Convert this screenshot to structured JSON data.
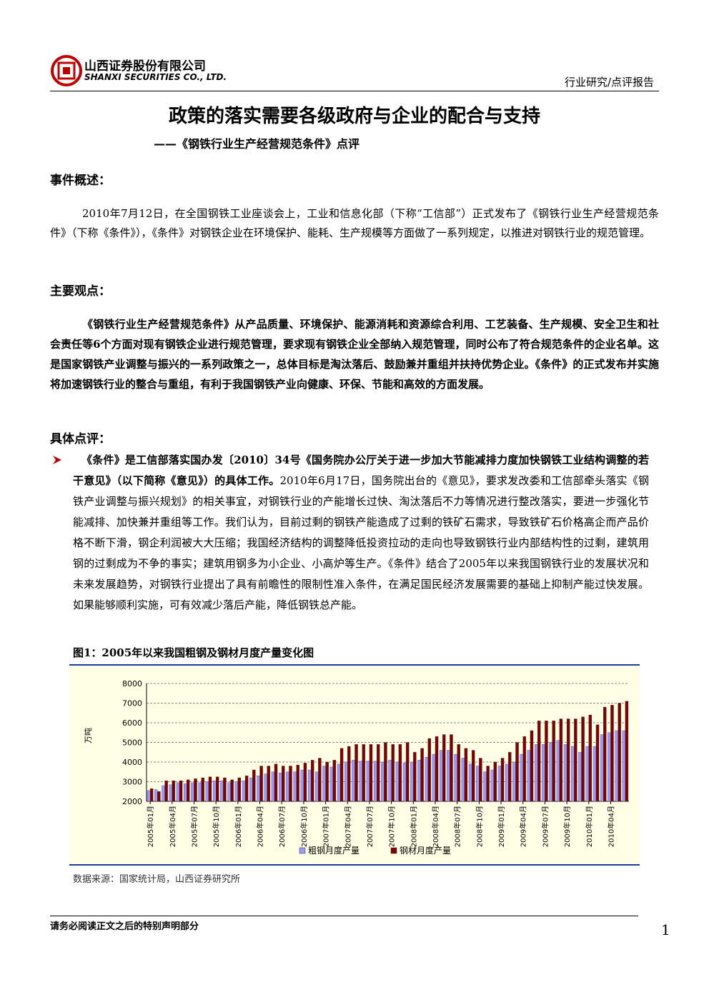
{
  "header": {
    "company_cn": "山西证券股份有限公司",
    "company_en": "SHANXI SECURITIES CO., LTD.",
    "report_type": "行业研究/点评报告"
  },
  "title": "政策的落实需要各级政府与企业的配合与支持",
  "subtitle": "——《钢铁行业生产经营规范条件》点评",
  "event_summary": {
    "heading": "事件概述：",
    "text": "2010年7月12日，在全国钢铁工业座谈会上，工业和信息化部（下称“工信部”）正式发布了《钢铁行业生产经营规范条件》（下称《条件》），《条件》对钢铁企业在环境保护、能耗、生产规模等方面做了一系列规定，以推进对钢铁行业的规范管理。"
  },
  "main_view": {
    "heading": "主要观点：",
    "text": "《钢铁行业生产经营规范条件》从产品质量、环境保护、能源消耗和资源综合利用、工艺装备、生产规模、安全卫生和社会责任等6个方面对现有钢铁企业进行规范管理，要求现有钢铁企业全部纳入规范管理，同时公布了符合规范条件的企业名单。这是国家钢铁产业调整与振兴的一系列政策之一，总体目标是淘汰落后、鼓励兼并重组并扶持优势企业。《条件》的正式发布并实施将加速钢铁行业的整合与重组，有利于我国钢铁产业向健康、环保、节能和高效的方面发展。"
  },
  "commentary": {
    "heading": "具体点评：",
    "bullet_bold": "《条件》是工信部落实国办发〔2010〕34号《国务院办公厅关于进一步加大节能减排力度加快钢铁工业结构调整的若干意见》（以下简称《意见》）的具体工作。",
    "bullet_text": "2010年6月17日，国务院出台的《意见》，要求发改委和工信部牵头落实《钢铁产业调整与振兴规划》的相关事宜，对钢铁行业的产能增长过快、淘汰落后不力等情况进行整改落实，要进一步强化节能减排、加快兼并重组等工作。我们认为，目前过剩的钢铁产能造成了过剩的铁矿石需求，导致铁矿石价格高企而产品价格不断下滑，钢企利润被大大压缩；我国经济结构的调整降低投资拉动的走向也导致钢铁行业内部结构性的过剩，建筑用钢的过剩成为不争的事实；建筑用钢多为小企业、小高炉等生产。《条件》结合了2005年以来我国钢铁行业的发展状况和未来发展趋势，对钢铁行业提出了具有前瞻性的限制性准入条件，在满足国民经济发展需要的基础上抑制产能过快发展。如果能够顺利实施，可有效减少落后产能，降低钢铁总产能。"
  },
  "figure": {
    "caption": "图1：2005年以来我国粗钢及钢材月度产量变化图",
    "source": "数据来源：国家统计局，山西证券研究所"
  },
  "chart_data": {
    "type": "bar",
    "y_label": "万吨",
    "categories": [
      "2005年01月",
      null,
      null,
      "2005年04月",
      null,
      null,
      "2005年07月",
      null,
      null,
      "2005年10月",
      null,
      null,
      "2006年01月",
      null,
      null,
      "2006年04月",
      null,
      null,
      "2006年07月",
      null,
      null,
      "2006年10月",
      null,
      null,
      "2007年01月",
      null,
      null,
      "2007年04月",
      null,
      null,
      "2007年07月",
      null,
      null,
      "2007年10月",
      null,
      null,
      "2008年01月",
      null,
      null,
      "2008年04月",
      null,
      null,
      "2008年07月",
      null,
      null,
      "2008年10月",
      null,
      null,
      "2009年01月",
      null,
      null,
      "2009年04月",
      null,
      null,
      "2009年07月",
      null,
      null,
      "2009年10月",
      null,
      null,
      "2010年01月",
      null,
      null,
      "2010年04月",
      null,
      null
    ],
    "series": [
      {
        "name": "粗钢月度产量",
        "color": "#9999ff",
        "values": [
          2550,
          2600,
          2800,
          2850,
          2950,
          2900,
          2950,
          2950,
          3000,
          3050,
          3050,
          2950,
          3000,
          3050,
          3200,
          3300,
          3400,
          3500,
          3450,
          3500,
          3500,
          3600,
          3600,
          3500,
          3800,
          3750,
          3900,
          4000,
          4100,
          4050,
          4050,
          4050,
          4000,
          4100,
          4000,
          3950,
          4000,
          4100,
          4250,
          4400,
          4600,
          4600,
          4400,
          4200,
          3900,
          3800,
          3500,
          3600,
          3800,
          3900,
          4000,
          4400,
          4600,
          4900,
          4900,
          5000,
          5100,
          4900,
          4800,
          4500,
          4800,
          4800,
          5400,
          5500,
          5600,
          5600
        ]
      },
      {
        "name": "钢材月度产量",
        "color": "#800000",
        "values": [
          2650,
          2500,
          3050,
          3050,
          3050,
          3100,
          3150,
          3200,
          3250,
          3250,
          3200,
          3100,
          3200,
          3300,
          3600,
          3800,
          3800,
          3900,
          3800,
          3800,
          3850,
          3950,
          4100,
          4200,
          4000,
          4100,
          4700,
          4800,
          4900,
          4900,
          4900,
          4900,
          5000,
          4900,
          4900,
          5000,
          4500,
          4700,
          5200,
          5300,
          5400,
          5400,
          4900,
          4700,
          4600,
          4200,
          3800,
          4000,
          4200,
          4500,
          5000,
          5300,
          5600,
          6100,
          6100,
          6100,
          6200,
          6200,
          6200,
          6300,
          6400,
          5900,
          6800,
          6900,
          7000,
          7100
        ]
      }
    ],
    "ylim": [
      2000,
      8000
    ],
    "yticks": [
      2000,
      3000,
      4000,
      5000,
      6000,
      7000,
      8000
    ],
    "grid": true,
    "legend": "bottom"
  },
  "footer": {
    "note": "请务必阅读正文之后的特别声明部分",
    "page_number": 1
  }
}
